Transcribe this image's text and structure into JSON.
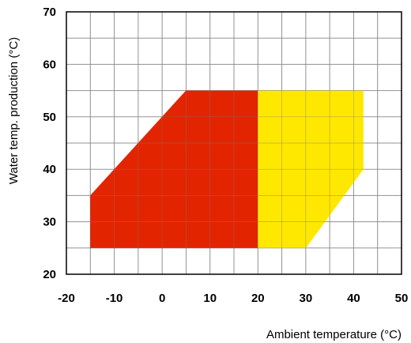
{
  "chart_data": {
    "type": "area",
    "title": "",
    "xlabel": "Ambient temperature (°C)",
    "ylabel": "Water temp. production (°C)",
    "xlim": [
      -20,
      50
    ],
    "ylim": [
      20,
      70
    ],
    "x_ticks": [
      "-20",
      "-10",
      "0",
      "10",
      "20",
      "30",
      "40",
      "50"
    ],
    "y_ticks": [
      "20",
      "30",
      "40",
      "50",
      "60",
      "70"
    ],
    "x_tick_values": [
      -20,
      -10,
      0,
      10,
      20,
      30,
      40,
      50
    ],
    "y_tick_values": [
      20,
      30,
      40,
      50,
      60,
      70
    ],
    "x_grid_step": 5,
    "y_grid_step": 5,
    "grid": true,
    "regions": [
      {
        "color": "#e32400",
        "points": [
          [
            -15,
            25
          ],
          [
            -15,
            35
          ],
          [
            5,
            55
          ],
          [
            20,
            55
          ],
          [
            20,
            25
          ]
        ]
      },
      {
        "color": "#ffe800",
        "points": [
          [
            20,
            25
          ],
          [
            20,
            55
          ],
          [
            42,
            55
          ],
          [
            42,
            40
          ],
          [
            30,
            25
          ]
        ]
      }
    ]
  }
}
